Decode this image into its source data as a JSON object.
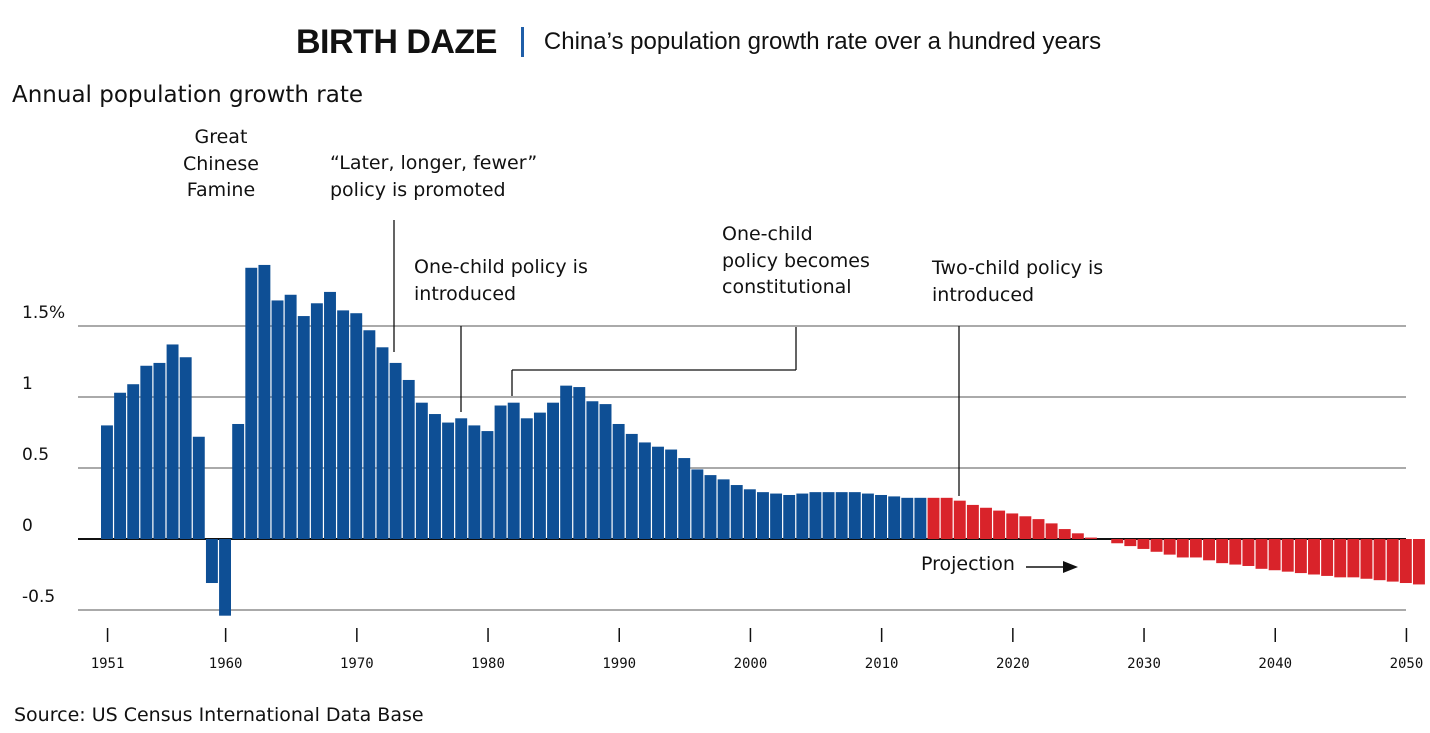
{
  "title": "BIRTH DAZE",
  "subtitle": "China’s population growth rate over a hundred years",
  "source": "Source: US Census International Data Base",
  "chart_data": {
    "type": "bar",
    "ylabel": "Annual population growth rate",
    "ylim": [
      -0.55,
      2.2
    ],
    "y_ticks": [
      {
        "value": 1.5,
        "label": "1.5%"
      },
      {
        "value": 1,
        "label": "1"
      },
      {
        "value": 0.5,
        "label": "0.5"
      },
      {
        "value": 0,
        "label": "0"
      },
      {
        "value": -0.5,
        "label": "-0.5"
      }
    ],
    "x_ticks": [
      "1951",
      "1960",
      "1970",
      "1980",
      "1990",
      "2000",
      "2010",
      "2020",
      "2030",
      "2040",
      "2050"
    ],
    "grid": true,
    "years": [
      1951,
      1952,
      1953,
      1954,
      1955,
      1956,
      1957,
      1958,
      1959,
      1960,
      1961,
      1962,
      1963,
      1964,
      1965,
      1966,
      1967,
      1968,
      1969,
      1970,
      1971,
      1972,
      1973,
      1974,
      1975,
      1976,
      1977,
      1978,
      1979,
      1980,
      1981,
      1982,
      1983,
      1984,
      1985,
      1986,
      1987,
      1988,
      1989,
      1990,
      1991,
      1992,
      1993,
      1994,
      1995,
      1996,
      1997,
      1998,
      1999,
      2000,
      2001,
      2002,
      2003,
      2004,
      2005,
      2006,
      2007,
      2008,
      2009,
      2010,
      2011,
      2012,
      2013,
      2014,
      2015,
      2016,
      2017,
      2018,
      2019,
      2020,
      2021,
      2022,
      2023,
      2024,
      2025,
      2026,
      2027,
      2028,
      2029,
      2030,
      2031,
      2032,
      2033,
      2034,
      2035,
      2036,
      2037,
      2038,
      2039,
      2040,
      2041,
      2042,
      2043,
      2044,
      2045,
      2046,
      2047,
      2048,
      2049,
      2050
    ],
    "series": [
      {
        "values": [
          0.8,
          1.03,
          1.09,
          1.22,
          1.24,
          1.37,
          1.28,
          0.72,
          -0.31,
          -0.54,
          0.81,
          1.91,
          1.93,
          1.68,
          1.72,
          1.57,
          1.66,
          1.74,
          1.61,
          1.59,
          1.47,
          1.35,
          1.24,
          1.12,
          0.96,
          0.88,
          0.82,
          0.85,
          0.8,
          0.76,
          0.94,
          0.96,
          0.85,
          0.89,
          0.96,
          1.08,
          1.07,
          0.97,
          0.95,
          0.81,
          0.74,
          0.68,
          0.65,
          0.63,
          0.57,
          0.49,
          0.45,
          0.42,
          0.38,
          0.35,
          0.33,
          0.32,
          0.31,
          0.32,
          0.33,
          0.33,
          0.33,
          0.33,
          0.32,
          0.31,
          0.3,
          0.29,
          0.29
        ],
        "color": "#0e4f95"
      },
      {
        "values": [
          0.29,
          0.29,
          0.27,
          0.24,
          0.22,
          0.2,
          0.18,
          0.16,
          0.14,
          0.11,
          0.07,
          0.04,
          0.01,
          0,
          -0.03,
          -0.05,
          -0.07,
          -0.09,
          -0.11,
          -0.13,
          -0.13,
          -0.15,
          -0.17,
          -0.18,
          -0.19,
          -0.21,
          -0.22,
          -0.23,
          -0.24,
          -0.25,
          -0.26,
          -0.27,
          -0.27,
          -0.28,
          -0.29,
          -0.3,
          -0.31,
          -0.32
        ],
        "color": "#d9232a"
      }
    ],
    "annotations": [
      {
        "id": "famine",
        "lines": [
          "Great",
          "Chinese",
          "Famine"
        ]
      },
      {
        "id": "later-longer-fewer",
        "lines": [
          "“Later, longer, fewer”",
          "policy is promoted"
        ]
      },
      {
        "id": "one-child-introduced",
        "lines": [
          "One-child policy is",
          "introduced"
        ]
      },
      {
        "id": "one-child-constitutional",
        "lines": [
          "One-child",
          "policy becomes",
          "constitutional"
        ]
      },
      {
        "id": "two-child-introduced",
        "lines": [
          "Two-child policy is",
          "introduced"
        ]
      },
      {
        "id": "projection",
        "lines": [
          "Projection"
        ]
      }
    ]
  }
}
